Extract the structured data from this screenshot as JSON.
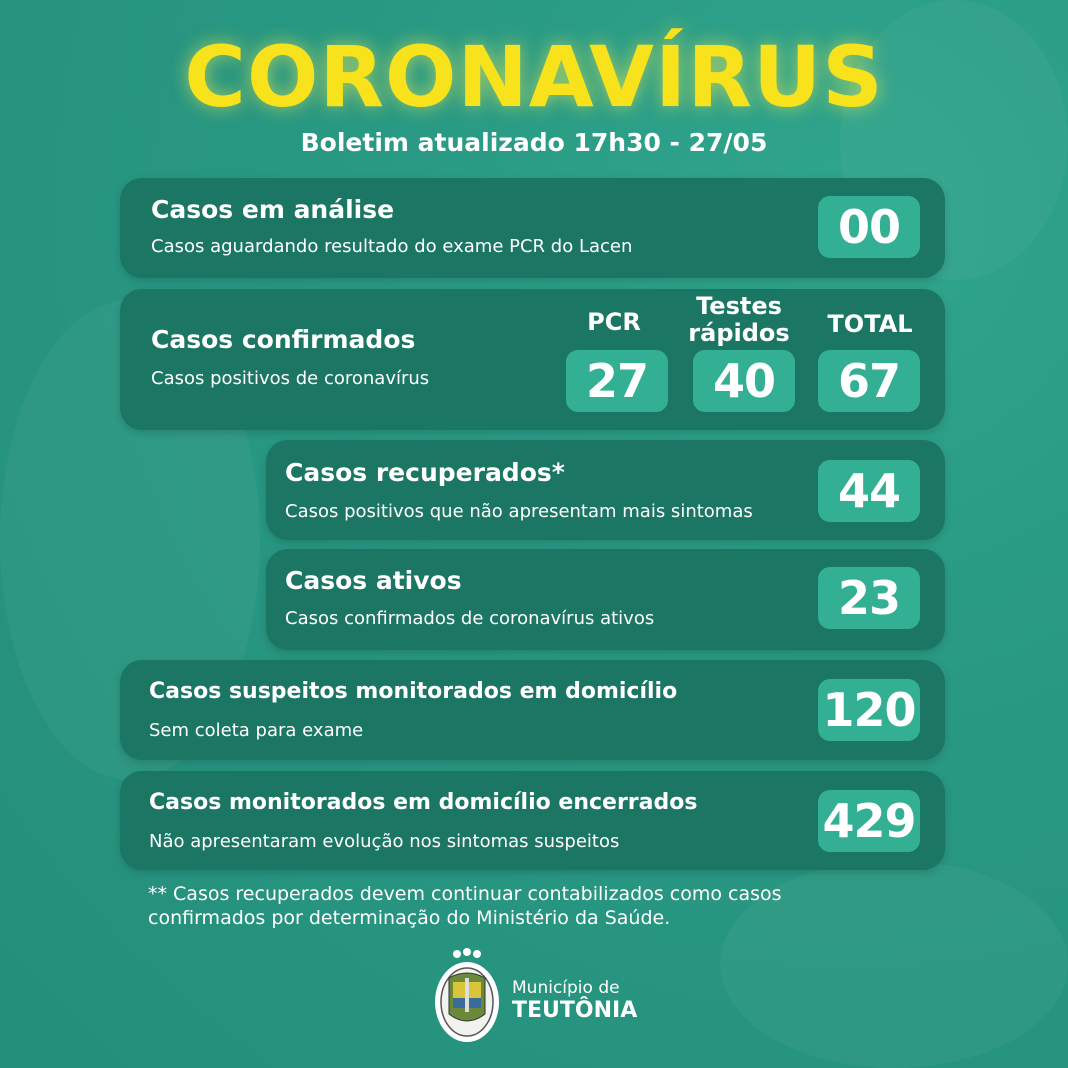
{
  "header": {
    "title": "CORONAVÍRUS",
    "subtitle": "Boletim atualizado 17h30 - 27/05"
  },
  "cards": {
    "analise": {
      "title": "Casos em análise",
      "subtitle": "Casos aguardando resultado do exame PCR do Lacen",
      "value": "00"
    },
    "confirmados": {
      "title": "Casos confirmados",
      "subtitle": "Casos positivos de coronavírus",
      "columns": [
        {
          "label": "PCR",
          "value": "27"
        },
        {
          "label": "Testes rápidos",
          "value": "40"
        },
        {
          "label": "TOTAL",
          "value": "67"
        }
      ]
    },
    "recuperados": {
      "title": "Casos recuperados*",
      "subtitle": "Casos positivos que não apresentam mais sintomas",
      "value": "44"
    },
    "ativos": {
      "title": "Casos ativos",
      "subtitle": "Casos confirmados de coronavírus ativos",
      "value": "23"
    },
    "suspeitos": {
      "title": "Casos suspeitos monitorados em domicílio",
      "subtitle": "Sem coleta para exame",
      "value": "120"
    },
    "encerrados": {
      "title": "Casos monitorados em domicílio encerrados",
      "subtitle": "Não apresentaram evolução nos sintomas suspeitos",
      "value": "429"
    }
  },
  "footnote": {
    "line1": "** Casos recuperados devem continuar contabilizados como casos",
    "line2": "confirmados por determinação do Ministério da Saúde."
  },
  "footer": {
    "municipio": "Município de",
    "name": "TEUTÔNIA"
  },
  "colors": {
    "background": "#299983",
    "card": "#1c7664",
    "value_box": "#33b094",
    "title": "#f7e21c"
  }
}
